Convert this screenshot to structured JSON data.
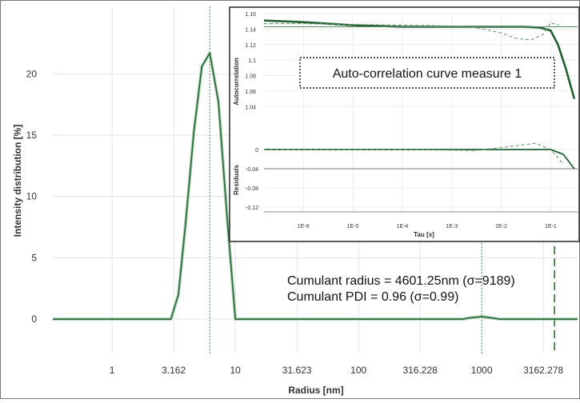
{
  "chart_data": [
    {
      "type": "line",
      "xlabel": "Radius [nm]",
      "ylabel": "Intensity distribution [%]",
      "x_scale": "log",
      "xlim": [
        0.33,
        6000
      ],
      "ylim": [
        -2.8,
        25.5
      ],
      "x_ticks": [
        {
          "value": 1,
          "label": "1"
        },
        {
          "value": 3.162,
          "label": "3.162"
        },
        {
          "value": 10,
          "label": "10"
        },
        {
          "value": 31.623,
          "label": "31.623"
        },
        {
          "value": 100,
          "label": "100"
        },
        {
          "value": 316.228,
          "label": "316.228"
        },
        {
          "value": 1000,
          "label": "1000"
        },
        {
          "value": 3162.278,
          "label": "3162.278"
        }
      ],
      "y_ticks": [
        {
          "value": 0,
          "label": "0"
        },
        {
          "value": 5,
          "label": "5"
        },
        {
          "value": 10,
          "label": "10"
        },
        {
          "value": 15,
          "label": "15"
        },
        {
          "value": 20,
          "label": "20"
        }
      ],
      "grid": true,
      "series": [
        {
          "color": "#2e6e3e",
          "x": [
            0.33,
            3.0,
            3.45,
            3.95,
            4.6,
            5.35,
            6.2,
            7.3,
            8.6,
            10.0,
            11.4,
            40,
            700,
            800,
            1000,
            1200,
            1400,
            6000
          ],
          "y": [
            0,
            0,
            2,
            7.8,
            15.2,
            20.6,
            21.7,
            17.7,
            8.1,
            0,
            0,
            0,
            0,
            0.1,
            0.2,
            0.1,
            0,
            0
          ]
        }
      ],
      "reference_lines": [
        {
          "x": 6.2,
          "style": "dotted",
          "color": "#4a8a5a"
        },
        {
          "x": 1000,
          "style": "dotted",
          "color": "#4a8a5a"
        },
        {
          "x": 3900,
          "style": "dashed",
          "color": "#2e6e3e"
        }
      ],
      "annotations": [
        "Cumulant  radius = 4601.25nm  (σ=9189)",
        "Cumulant  PDI = 0.96 (σ=0.99)"
      ]
    },
    {
      "type": "line",
      "title": "Auto-correlation  curve measure  1",
      "xlabel": "Tau [s]",
      "ylabel": "Autocorrelation",
      "x_scale": "log",
      "xlim": [
        1.6e-07,
        0.35
      ],
      "ylim": [
        1.0,
        1.16
      ],
      "x_ticks": [
        "1E-6",
        "1E-5",
        "1E-4",
        "1E-3",
        "1E-2",
        "1E-1"
      ],
      "y_ticks": [
        "1.16",
        "1.14",
        "1.12",
        "1.1",
        "1.08",
        "1.06",
        "1.04"
      ],
      "grid": true,
      "series": [
        {
          "name": "measured",
          "color": "#1f5f30",
          "x": [
            1.6e-07,
            1e-06,
            1e-05,
            0.0001,
            0.001,
            0.01,
            0.03,
            0.06,
            0.1,
            0.14,
            0.2,
            0.3
          ],
          "y": [
            1.151,
            1.149,
            1.145,
            1.143,
            1.143,
            1.143,
            1.143,
            1.142,
            1.138,
            1.12,
            1.09,
            1.05
          ]
        },
        {
          "name": "fit-dashed",
          "color": "#6a9c74",
          "style": "dashed",
          "x": [
            1.6e-07,
            1e-06,
            1e-05,
            0.0001,
            0.001,
            0.003,
            0.01,
            0.02,
            0.04,
            0.07,
            0.1,
            0.15
          ],
          "y": [
            1.147,
            1.147,
            1.146,
            1.145,
            1.144,
            1.142,
            1.135,
            1.128,
            1.126,
            1.133,
            1.148,
            1.145
          ]
        },
        {
          "name": "fit-solid",
          "color": "#5c8c66",
          "x": [
            1.6e-07,
            1e-05,
            0.001,
            0.1,
            0.35
          ],
          "y": [
            1.143,
            1.143,
            1.143,
            1.143,
            1.143
          ]
        }
      ]
    },
    {
      "type": "line",
      "xlabel": "Tau [s]",
      "ylabel": "Residuals",
      "x_scale": "log",
      "xlim": [
        1.6e-07,
        0.35
      ],
      "ylim": [
        -0.13,
        0.01
      ],
      "y_ticks": [
        "0",
        "-0.04",
        "-0.08",
        "-0.12"
      ],
      "series": [
        {
          "name": "residual-measured",
          "color": "#1f5f30",
          "x": [
            1.6e-07,
            1e-05,
            0.001,
            0.1,
            0.18,
            0.3
          ],
          "y": [
            0,
            0,
            0,
            0,
            -0.01,
            -0.04
          ]
        },
        {
          "name": "residual-dashed",
          "color": "#6a9c74",
          "style": "dashed",
          "x": [
            1.6e-07,
            0.0001,
            0.003,
            0.02,
            0.05,
            0.1,
            0.18
          ],
          "y": [
            0,
            0,
            -0.002,
            0.008,
            0.013,
            0,
            -0.03
          ]
        }
      ]
    }
  ]
}
